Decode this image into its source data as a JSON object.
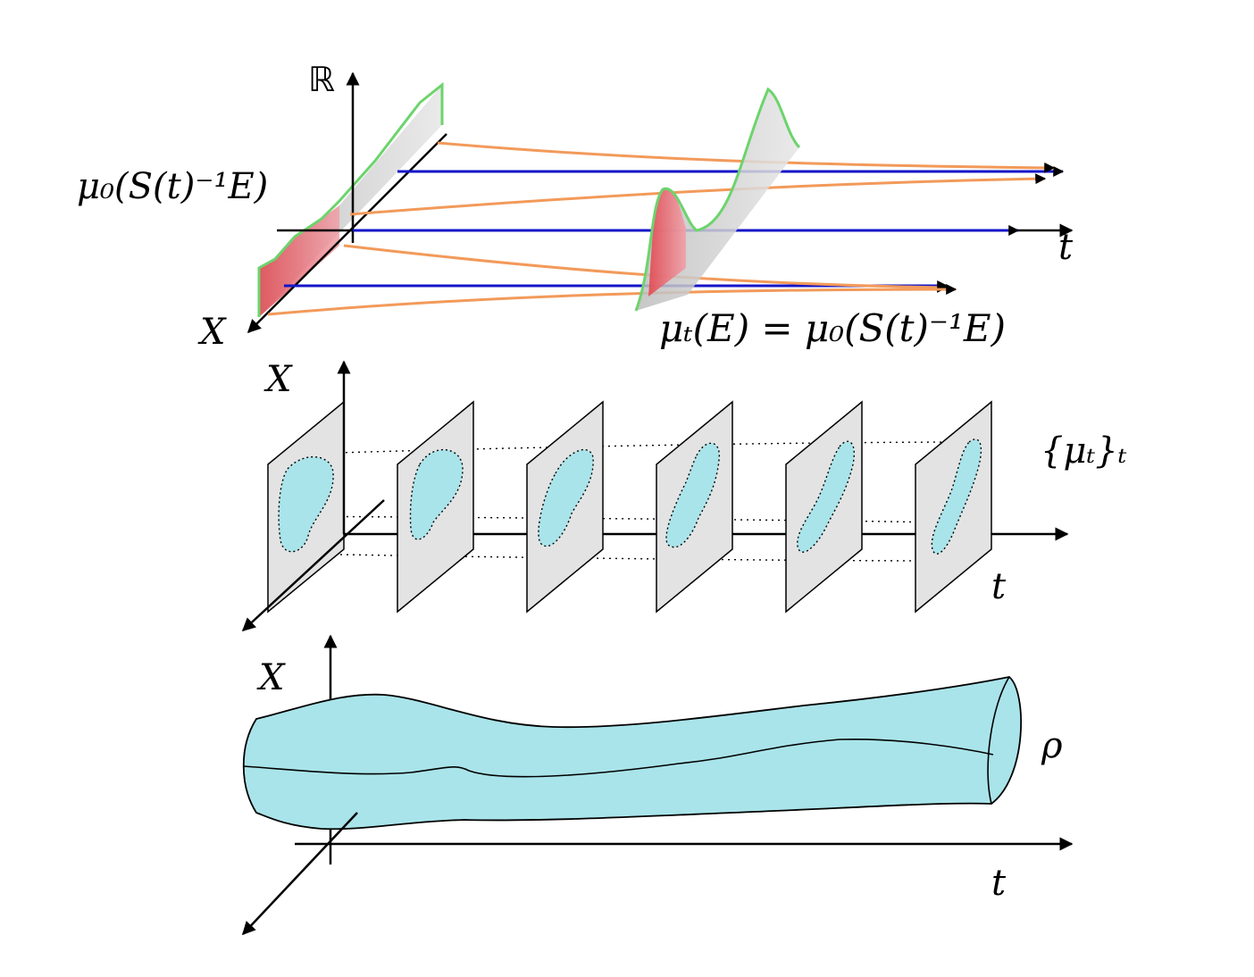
{
  "panel_top": {
    "labels": {
      "range_axis": "ℝ",
      "x_axis": "X",
      "t_axis": "t",
      "initial_measure": "μ₀(S(t)⁻¹E)",
      "pushforward": "μₜ(E) = μ₀(S(t)⁻¹E)"
    },
    "colors": {
      "trajectory": "#f29a5a",
      "flow_line": "#1515c8",
      "density_edge": "#6cd46c",
      "set_E": "#e85a6a",
      "fill": "#cfcfcf"
    }
  },
  "panel_middle": {
    "labels": {
      "x_axis": "X",
      "t_axis": "t",
      "family": "{μₜ}ₜ"
    },
    "slice_count": 6,
    "colors": {
      "blob": "#a9e4ea",
      "plane": "#e3e3e3"
    }
  },
  "panel_bottom": {
    "labels": {
      "x_axis": "X",
      "t_axis": "t",
      "density": "ρ"
    },
    "colors": {
      "tube": "#a9e4ea"
    }
  }
}
